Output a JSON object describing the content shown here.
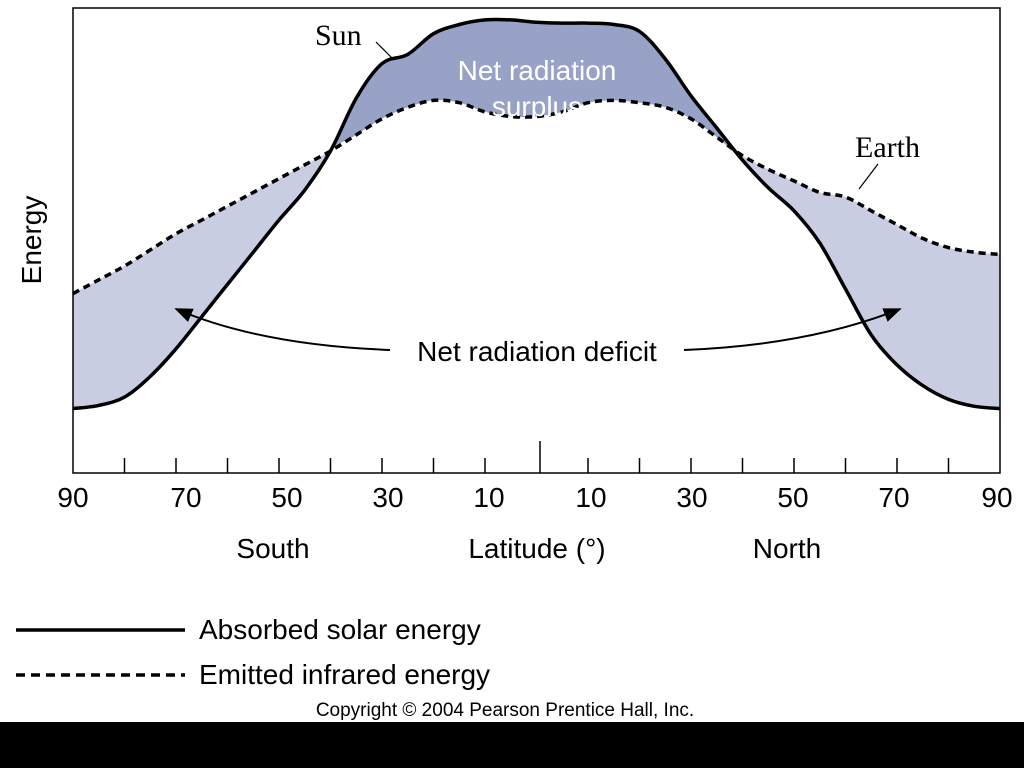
{
  "chart_data": {
    "type": "line",
    "title": "",
    "xlabel": "Latitude (°)",
    "ylabel": "Energy",
    "x_ticks": [
      "90",
      "70",
      "50",
      "30",
      "10",
      "10",
      "30",
      "50",
      "70",
      "90"
    ],
    "hemisphere_labels": {
      "south": "South",
      "north": "North"
    },
    "x_range": [
      -90,
      90
    ],
    "y_axis_values_shown": false,
    "grid": false,
    "legend_placement": "bottom-left",
    "series": [
      {
        "name": "Absorbed solar energy",
        "line_style": "solid",
        "x": [
          -90,
          -85,
          -80,
          -75,
          -70,
          -65,
          -60,
          -55,
          -50,
          -45,
          -40,
          -35,
          -30,
          -25,
          -20,
          -15,
          -10,
          -5,
          0,
          5,
          10,
          15,
          20,
          25,
          30,
          35,
          40,
          45,
          50,
          55,
          60,
          65,
          70,
          75,
          80,
          85,
          90
        ],
        "values": [
          14,
          14.7,
          16.5,
          21,
          27,
          34,
          41,
          48,
          55,
          61.5,
          70,
          81.5,
          89,
          91,
          95.5,
          97.5,
          98.5,
          98.5,
          98,
          97.8,
          97.8,
          97.5,
          96,
          90,
          82,
          75,
          68,
          62,
          57,
          50,
          40,
          30,
          23.5,
          19,
          16,
          14.5,
          14
        ]
      },
      {
        "name": "Emitted infrared energy",
        "line_style": "dashed",
        "x": [
          -90,
          -85,
          -80,
          -75,
          -70,
          -65,
          -60,
          -55,
          -50,
          -45,
          -40,
          -35,
          -30,
          -25,
          -20,
          -15,
          -10,
          -5,
          0,
          5,
          10,
          15,
          20,
          25,
          30,
          35,
          40,
          45,
          50,
          55,
          60,
          65,
          70,
          75,
          80,
          85,
          90
        ],
        "values": [
          39,
          42,
          45,
          48.5,
          52,
          55,
          58,
          61,
          64,
          67,
          70,
          73.5,
          77,
          79.5,
          81,
          80.5,
          78.5,
          77.5,
          77.5,
          78.5,
          80.5,
          81,
          80.5,
          79.5,
          77,
          73,
          69,
          66,
          63.5,
          61,
          60,
          57,
          54,
          51,
          49,
          48,
          47.5
        ]
      }
    ],
    "annotations": {
      "surplus": [
        "Net radiation",
        "surplus"
      ],
      "deficit": "Net radiation deficit",
      "sun": "Sun",
      "earth": "Earth"
    },
    "legend": {
      "solid": "Absorbed solar energy",
      "dashed": "Emitted infrared energy"
    },
    "copyright": "Copyright © 2004 Pearson Prentice Hall, Inc.",
    "colors": {
      "surplus_fill": "#97a2c6",
      "deficit_fill": "#c9cde1",
      "line": "#000000",
      "background": "#ffffff",
      "bottom_bar": "#000000"
    }
  }
}
